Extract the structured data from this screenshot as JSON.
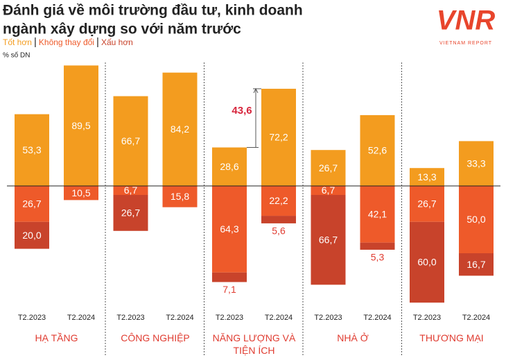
{
  "chart_data": {
    "type": "diverging-stacked-bar",
    "title": [
      "Đánh giá về môi trường đầu tư, kinh doanh",
      "ngành xây dựng so với năm trước"
    ],
    "y_label": "% số DN",
    "logo": {
      "text": "VNR",
      "subtitle": "VIETNAM REPORT"
    },
    "groups": [
      "HẠ TẦNG",
      "CÔNG NGHIỆP",
      "NĂNG LƯỢNG VÀ TIỆN ÍCH",
      "NHÀ Ở",
      "THƯƠNG MẠI"
    ],
    "categories": [
      "T2.2023",
      "T2.2024",
      "T2.2023",
      "T2.2024",
      "T2.2023",
      "T2.2024",
      "T2.2023",
      "T2.2024",
      "T2.2023",
      "T2.2024"
    ],
    "series": [
      {
        "name": "Tốt hơn",
        "color": "#f39c1f",
        "direction": "up",
        "values": [
          53.3,
          89.5,
          66.7,
          84.2,
          28.6,
          72.2,
          26.7,
          52.6,
          13.3,
          33.3
        ],
        "value_labels": [
          "53,3",
          "89,5",
          "66,7",
          "84,2",
          "28,6",
          "72,2",
          "26,7",
          "52,6",
          "13,3",
          "33,3"
        ]
      },
      {
        "name": "Không thay đổi",
        "color": "#ee5a2a",
        "direction": "down",
        "values": [
          26.7,
          10.5,
          6.7,
          15.8,
          64.3,
          22.2,
          6.7,
          42.1,
          26.7,
          50.0
        ],
        "value_labels": [
          "26,7",
          "10,5",
          "6,7",
          "15,8",
          "64,3",
          "22,2",
          "6,7",
          "42,1",
          "26,7",
          "50,0"
        ]
      },
      {
        "name": "Xấu hơn",
        "color": "#c8432b",
        "direction": "down",
        "values": [
          20.0,
          null,
          26.7,
          null,
          7.1,
          5.6,
          66.7,
          5.3,
          60.0,
          16.7
        ],
        "value_labels": [
          "20,0",
          null,
          "26,7",
          null,
          "7,1",
          "5,6",
          "66,7",
          "5,3",
          "60,0",
          "16,7"
        ]
      }
    ],
    "annotation": {
      "value": 43.6,
      "label": "43,6",
      "color": "#d7263d"
    },
    "ylim": [
      -100,
      100
    ]
  }
}
